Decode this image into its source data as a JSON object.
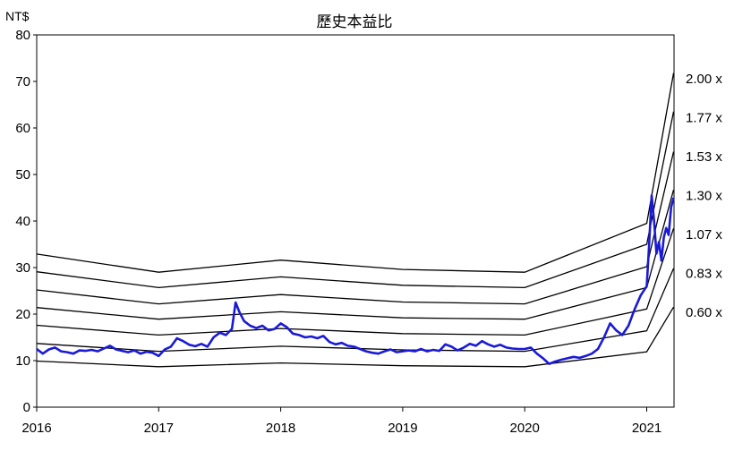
{
  "chart_data": {
    "type": "line",
    "title": "歷史本益比",
    "ylabel": "NT$",
    "xlabel": "",
    "ylim": [
      0,
      80
    ],
    "yticks": [
      0,
      10,
      20,
      30,
      40,
      50,
      60,
      70,
      80
    ],
    "xlim": [
      2016.0,
      2021.22
    ],
    "xticks": [
      "2016",
      "2017",
      "2018",
      "2019",
      "2020",
      "2021"
    ],
    "grid": false,
    "colors": {
      "price": "#1a1ad6",
      "bands": "#000000"
    },
    "bands": [
      {
        "name": "2.00 x",
        "x": [
          2016.0,
          2017.0,
          2018.0,
          2019.0,
          2020.0,
          2021.0,
          2021.22
        ],
        "values": [
          32.9,
          29.0,
          31.6,
          29.6,
          29.0,
          39.5,
          71.8
        ]
      },
      {
        "name": "1.77 x",
        "x": [
          2016.0,
          2017.0,
          2018.0,
          2019.0,
          2020.0,
          2021.0,
          2021.22
        ],
        "values": [
          29.1,
          25.7,
          28.0,
          26.2,
          25.7,
          35.0,
          63.5
        ]
      },
      {
        "name": "1.53 x",
        "x": [
          2016.0,
          2017.0,
          2018.0,
          2019.0,
          2020.0,
          2021.0,
          2021.22
        ],
        "values": [
          25.2,
          22.2,
          24.2,
          22.6,
          22.2,
          30.2,
          54.9
        ]
      },
      {
        "name": "1.30 x",
        "x": [
          2016.0,
          2017.0,
          2018.0,
          2019.0,
          2020.0,
          2021.0,
          2021.22
        ],
        "values": [
          21.4,
          18.9,
          20.5,
          19.2,
          18.9,
          25.7,
          46.7
        ]
      },
      {
        "name": "1.07 x",
        "x": [
          2016.0,
          2017.0,
          2018.0,
          2019.0,
          2020.0,
          2021.0,
          2021.22
        ],
        "values": [
          17.6,
          15.5,
          16.9,
          15.8,
          15.5,
          21.1,
          38.4
        ]
      },
      {
        "name": "0.83 x",
        "x": [
          2016.0,
          2017.0,
          2018.0,
          2019.0,
          2020.0,
          2021.0,
          2021.22
        ],
        "values": [
          13.7,
          12.0,
          13.1,
          12.3,
          12.0,
          16.4,
          29.8
        ]
      },
      {
        "name": "0.60 x",
        "x": [
          2016.0,
          2017.0,
          2018.0,
          2019.0,
          2020.0,
          2021.0,
          2021.22
        ],
        "values": [
          9.9,
          8.7,
          9.5,
          8.9,
          8.7,
          11.9,
          21.5
        ]
      }
    ],
    "price": {
      "x": [
        2016.0,
        2016.05,
        2016.1,
        2016.15,
        2016.2,
        2016.25,
        2016.3,
        2016.35,
        2016.4,
        2016.45,
        2016.5,
        2016.55,
        2016.6,
        2016.65,
        2016.7,
        2016.75,
        2016.8,
        2016.85,
        2016.9,
        2016.95,
        2017.0,
        2017.05,
        2017.1,
        2017.15,
        2017.2,
        2017.25,
        2017.3,
        2017.35,
        2017.4,
        2017.45,
        2017.5,
        2017.55,
        2017.6,
        2017.63,
        2017.66,
        2017.7,
        2017.75,
        2017.8,
        2017.85,
        2017.9,
        2017.95,
        2018.0,
        2018.05,
        2018.1,
        2018.15,
        2018.2,
        2018.25,
        2018.3,
        2018.35,
        2018.4,
        2018.45,
        2018.5,
        2018.55,
        2018.6,
        2018.65,
        2018.7,
        2018.75,
        2018.8,
        2018.85,
        2018.9,
        2018.95,
        2019.0,
        2019.05,
        2019.1,
        2019.15,
        2019.2,
        2019.25,
        2019.3,
        2019.35,
        2019.4,
        2019.45,
        2019.5,
        2019.55,
        2019.6,
        2019.65,
        2019.7,
        2019.75,
        2019.8,
        2019.85,
        2019.9,
        2019.95,
        2020.0,
        2020.05,
        2020.1,
        2020.15,
        2020.2,
        2020.25,
        2020.3,
        2020.35,
        2020.4,
        2020.45,
        2020.5,
        2020.55,
        2020.6,
        2020.65,
        2020.7,
        2020.75,
        2020.8,
        2020.85,
        2020.9,
        2020.95,
        2021.0,
        2021.02,
        2021.04,
        2021.06,
        2021.08,
        2021.1,
        2021.12,
        2021.14,
        2021.16,
        2021.18,
        2021.2,
        2021.22
      ],
      "values": [
        12.5,
        11.5,
        12.4,
        12.8,
        12.0,
        11.8,
        11.5,
        12.2,
        12.1,
        12.3,
        12.0,
        12.6,
        13.2,
        12.4,
        12.1,
        11.8,
        12.2,
        11.5,
        11.9,
        11.7,
        11.0,
        12.4,
        13.0,
        14.8,
        14.2,
        13.4,
        13.1,
        13.6,
        13.0,
        15.0,
        16.0,
        15.5,
        16.8,
        22.5,
        20.5,
        18.5,
        17.5,
        17.0,
        17.5,
        16.5,
        16.8,
        18.0,
        17.2,
        15.8,
        15.5,
        15.0,
        15.2,
        14.8,
        15.3,
        14.0,
        13.5,
        13.8,
        13.2,
        13.0,
        12.5,
        12.0,
        11.7,
        11.5,
        12.0,
        12.4,
        11.8,
        12.0,
        12.2,
        12.0,
        12.5,
        12.0,
        12.3,
        12.1,
        13.5,
        13.0,
        12.2,
        12.8,
        13.6,
        13.2,
        14.2,
        13.5,
        13.0,
        13.4,
        12.8,
        12.6,
        12.5,
        12.5,
        12.8,
        11.5,
        10.5,
        9.3,
        9.8,
        10.2,
        10.5,
        10.8,
        10.6,
        11.0,
        11.5,
        12.5,
        15.0,
        18.0,
        16.5,
        15.5,
        17.5,
        21.0,
        24.0,
        26.0,
        35.0,
        45.5,
        40.0,
        33.0,
        35.5,
        31.5,
        36.5,
        38.5,
        37.0,
        43.0,
        45.0
      ]
    }
  }
}
